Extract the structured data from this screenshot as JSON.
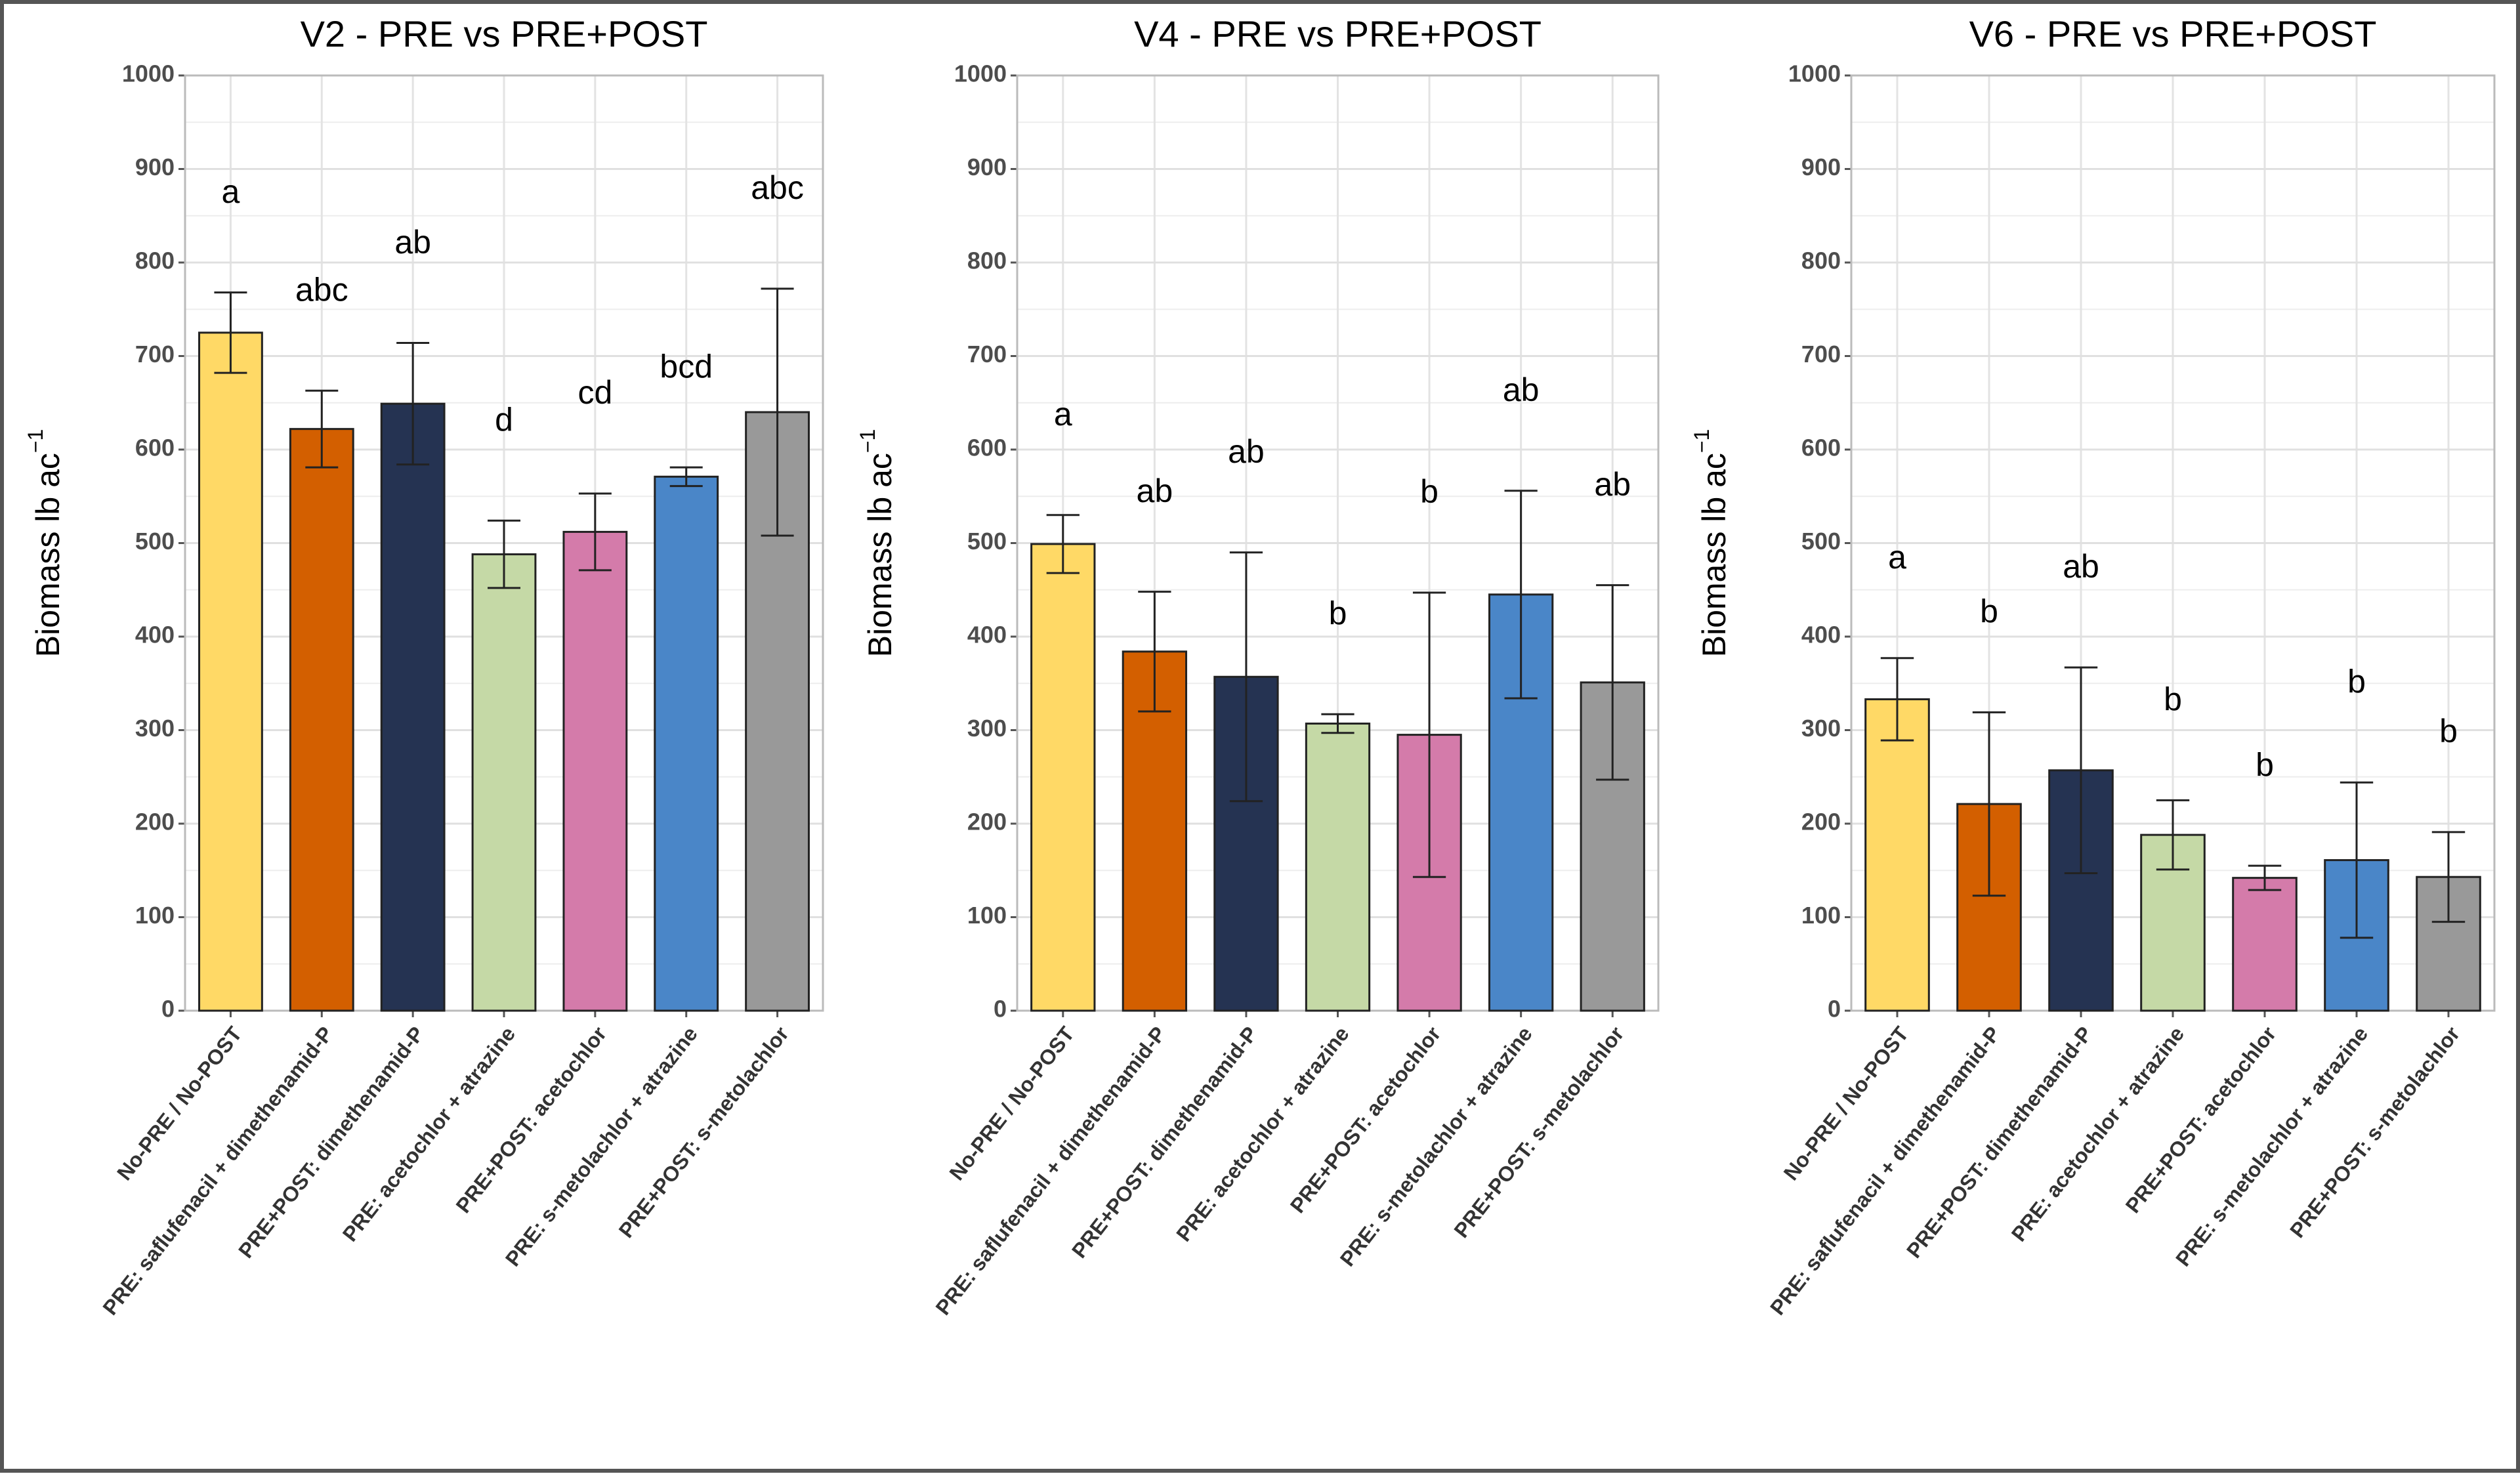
{
  "chart_data": [
    {
      "type": "bar",
      "title": "V2 - PRE vs PRE+POST",
      "ylabel": "Biomass lb ac",
      "ylabel_superscript": "−1",
      "categories": [
        "No-PRE / No-POST",
        "PRE: saflufenacil + dimethenamid-P",
        "PRE+POST: dimethenamid-P",
        "PRE: acetochlor + atrazine",
        "PRE+POST: acetochlor",
        "PRE: s-metolachlor + atrazine",
        "PRE+POST: s-metolachlor"
      ],
      "values": [
        725,
        622,
        649,
        488,
        512,
        571,
        640
      ],
      "errors": [
        43,
        41,
        65,
        36,
        41,
        10,
        132
      ],
      "annotations": [
        "a",
        "abc",
        "ab",
        "d",
        "cd",
        "bcd",
        "abc"
      ],
      "colors": [
        "#ffd966",
        "#d35f00",
        "#253352",
        "#c5d9a6",
        "#d47baa",
        "#4a86c8",
        "#999999"
      ],
      "ylim": [
        0,
        1000
      ],
      "yticks": [
        0,
        100,
        200,
        300,
        400,
        500,
        600,
        700,
        800,
        900,
        1000
      ],
      "grid": true
    },
    {
      "type": "bar",
      "title": "V4 - PRE vs PRE+POST",
      "ylabel": "Biomass lb ac",
      "ylabel_superscript": "−1",
      "categories": [
        "No-PRE / No-POST",
        "PRE: saflufenacil + dimethenamid-P",
        "PRE+POST: dimethenamid-P",
        "PRE: acetochlor + atrazine",
        "PRE+POST: acetochlor",
        "PRE: s-metolachlor + atrazine",
        "PRE+POST: s-metolachlor"
      ],
      "values": [
        499,
        384,
        357,
        307,
        295,
        445,
        351
      ],
      "errors": [
        31,
        64,
        133,
        10,
        152,
        111,
        104
      ],
      "annotations": [
        "a",
        "ab",
        "ab",
        "b",
        "b",
        "ab",
        "ab"
      ],
      "colors": [
        "#ffd966",
        "#d35f00",
        "#253352",
        "#c5d9a6",
        "#d47baa",
        "#4a86c8",
        "#999999"
      ],
      "ylim": [
        0,
        1000
      ],
      "yticks": [
        0,
        100,
        200,
        300,
        400,
        500,
        600,
        700,
        800,
        900,
        1000
      ],
      "grid": true
    },
    {
      "type": "bar",
      "title": "V6 - PRE vs PRE+POST",
      "ylabel": "Biomass lb ac",
      "ylabel_superscript": "−1",
      "categories": [
        "No-PRE / No-POST",
        "PRE: saflufenacil + dimethenamid-P",
        "PRE+POST: dimethenamid-P",
        "PRE: acetochlor + atrazine",
        "PRE+POST: acetochlor",
        "PRE: s-metolachlor + atrazine",
        "PRE+POST: s-metolachlor"
      ],
      "values": [
        333,
        221,
        257,
        188,
        142,
        161,
        143
      ],
      "errors": [
        44,
        98,
        110,
        37,
        13,
        83,
        48
      ],
      "annotations": [
        "a",
        "b",
        "ab",
        "b",
        "b",
        "b",
        "b"
      ],
      "colors": [
        "#ffd966",
        "#d35f00",
        "#253352",
        "#c5d9a6",
        "#d47baa",
        "#4a86c8",
        "#999999"
      ],
      "ylim": [
        0,
        1000
      ],
      "yticks": [
        0,
        100,
        200,
        300,
        400,
        500,
        600,
        700,
        800,
        900,
        1000
      ],
      "grid": true
    }
  ]
}
